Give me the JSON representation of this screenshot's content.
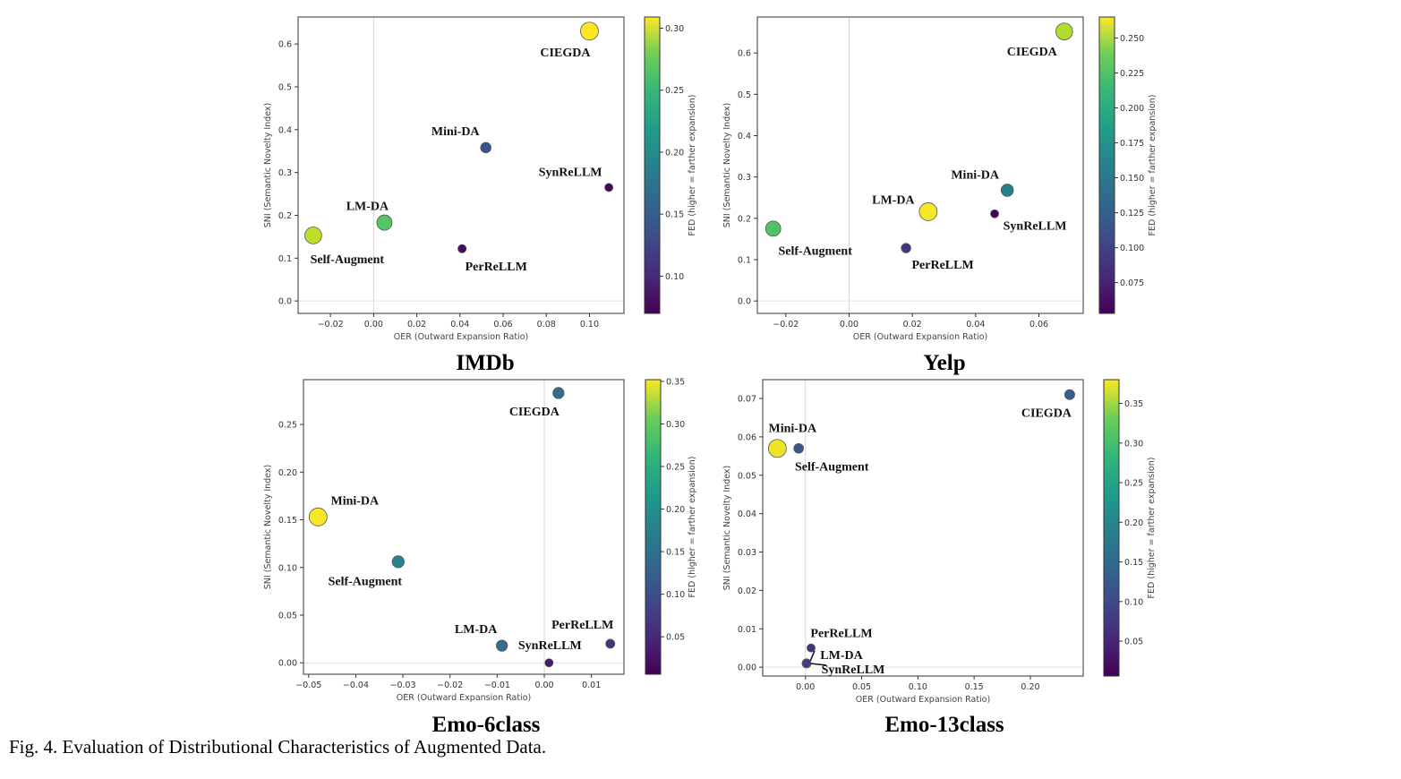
{
  "caption": "Fig. 4.  Evaluation of Distributional Characteristics of Augmented Data.",
  "chart_data": [
    {
      "type": "scatter",
      "title": "IMDb",
      "xlabel": "OER (Outward Expansion Ratio)",
      "ylabel": "SNI (Semantic Novelty Index)",
      "colorbar_label": "FED (higher = farther expansion)",
      "colormap": "viridis",
      "xlim": [
        -0.035,
        0.116
      ],
      "ylim": [
        -0.029,
        0.663
      ],
      "clim": [
        0.07,
        0.309
      ],
      "xticks": [
        "−0.02",
        "0.00",
        "0.02",
        "0.04",
        "0.06",
        "0.08",
        "0.10"
      ],
      "xtick_values": [
        -0.02,
        0,
        0.02,
        0.04,
        0.06,
        0.08,
        0.1
      ],
      "yticks": [
        "0.0",
        "0.1",
        "0.2",
        "0.3",
        "0.4",
        "0.5",
        "0.6"
      ],
      "ytick_values": [
        0,
        0.1,
        0.2,
        0.3,
        0.4,
        0.5,
        0.6
      ],
      "cticks": [
        "0.10",
        "0.15",
        "0.20",
        "0.25",
        "0.30"
      ],
      "ctick_values": [
        0.1,
        0.15,
        0.2,
        0.25,
        0.3
      ],
      "reference_lines": {
        "x": 0,
        "y": 0
      },
      "points": [
        {
          "name": "CIEGDA",
          "x": 0.1,
          "y": 0.63,
          "fed": 0.309
        },
        {
          "name": "Mini-DA",
          "x": 0.052,
          "y": 0.358,
          "fed": 0.13
        },
        {
          "name": "SynReLLM",
          "x": 0.109,
          "y": 0.265,
          "fed": 0.072
        },
        {
          "name": "LM-DA",
          "x": 0.005,
          "y": 0.183,
          "fed": 0.245
        },
        {
          "name": "Self-Augment",
          "x": -0.028,
          "y": 0.153,
          "fed": 0.285
        },
        {
          "name": "PerReLLM",
          "x": 0.041,
          "y": 0.122,
          "fed": 0.078
        }
      ]
    },
    {
      "type": "scatter",
      "title": "Yelp",
      "xlabel": "OER (Outward Expansion Ratio)",
      "ylabel": "SNI (Semantic Novelty Index)",
      "colorbar_label": "FED (higher = farther expansion)",
      "colormap": "viridis",
      "xlim": [
        -0.029,
        0.074
      ],
      "ylim": [
        -0.03,
        0.687
      ],
      "clim": [
        0.053,
        0.265
      ],
      "xticks": [
        "−0.02",
        "0.00",
        "0.02",
        "0.04",
        "0.06"
      ],
      "xtick_values": [
        -0.02,
        0,
        0.02,
        0.04,
        0.06
      ],
      "yticks": [
        "0.0",
        "0.1",
        "0.2",
        "0.3",
        "0.4",
        "0.5",
        "0.6"
      ],
      "ytick_values": [
        0,
        0.1,
        0.2,
        0.3,
        0.4,
        0.5,
        0.6
      ],
      "cticks": [
        "0.075",
        "0.100",
        "0.125",
        "0.150",
        "0.175",
        "0.200",
        "0.225",
        "0.250"
      ],
      "ctick_values": [
        0.075,
        0.1,
        0.125,
        0.15,
        0.175,
        0.2,
        0.225,
        0.25
      ],
      "reference_lines": {
        "x": 0,
        "y": 0
      },
      "points": [
        {
          "name": "CIEGDA",
          "x": 0.068,
          "y": 0.652,
          "fed": 0.24
        },
        {
          "name": "Mini-DA",
          "x": 0.05,
          "y": 0.268,
          "fed": 0.145
        },
        {
          "name": "LM-DA",
          "x": 0.025,
          "y": 0.216,
          "fed": 0.263
        },
        {
          "name": "SynReLLM",
          "x": 0.046,
          "y": 0.211,
          "fed": 0.055
        },
        {
          "name": "Self-Augment",
          "x": -0.024,
          "y": 0.175,
          "fed": 0.205
        },
        {
          "name": "PerReLLM",
          "x": 0.018,
          "y": 0.128,
          "fed": 0.085
        }
      ]
    },
    {
      "type": "scatter",
      "title": "Emo-6class",
      "xlabel": "OER (Outward Expansion Ratio)",
      "ylabel": "SNI (Semantic Novelty Index)",
      "colorbar_label": "FED (higher = farther expansion)",
      "colormap": "viridis",
      "xlim": [
        -0.0511,
        0.0169
      ],
      "ylim": [
        -0.012,
        0.297
      ],
      "clim": [
        0.006,
        0.352
      ],
      "xticks": [
        "−0.05",
        "−0.04",
        "−0.03",
        "−0.02",
        "−0.01",
        "0.00",
        "0.01"
      ],
      "xtick_values": [
        -0.05,
        -0.04,
        -0.03,
        -0.02,
        -0.01,
        0,
        0.01
      ],
      "yticks": [
        "0.00",
        "0.05",
        "0.10",
        "0.15",
        "0.20",
        "0.25"
      ],
      "ytick_values": [
        0,
        0.05,
        0.1,
        0.15,
        0.2,
        0.25
      ],
      "cticks": [
        "0.05",
        "0.10",
        "0.15",
        "0.20",
        "0.25",
        "0.30",
        "0.35"
      ],
      "ctick_values": [
        0.05,
        0.1,
        0.15,
        0.2,
        0.25,
        0.3,
        0.35
      ],
      "reference_lines": {
        "x": 0,
        "y": 0
      },
      "points": [
        {
          "name": "CIEGDA",
          "x": 0.003,
          "y": 0.283,
          "fed": 0.13
        },
        {
          "name": "Mini-DA",
          "x": -0.048,
          "y": 0.153,
          "fed": 0.35
        },
        {
          "name": "Self-Augment",
          "x": -0.031,
          "y": 0.106,
          "fed": 0.16
        },
        {
          "name": "LM-DA",
          "x": -0.009,
          "y": 0.018,
          "fed": 0.13
        },
        {
          "name": "SynReLLM",
          "x": 0.001,
          "y": 0.0,
          "fed": 0.03
        },
        {
          "name": "PerReLLM",
          "x": 0.014,
          "y": 0.02,
          "fed": 0.06
        }
      ]
    },
    {
      "type": "scatter",
      "title": "Emo-13class",
      "xlabel": "OER (Outward Expansion Ratio)",
      "ylabel": "SNI (Semantic Novelty Index)",
      "colorbar_label": "FED (higher = farther expansion)",
      "colormap": "viridis",
      "xlim": [
        -0.038,
        0.247
      ],
      "ylim": [
        -0.0023,
        0.0749
      ],
      "clim": [
        0.006,
        0.38
      ],
      "xticks": [
        "0.00",
        "0.05",
        "0.10",
        "0.15",
        "0.20"
      ],
      "xtick_values": [
        0,
        0.05,
        0.1,
        0.15,
        0.2
      ],
      "yticks": [
        "0.00",
        "0.01",
        "0.02",
        "0.03",
        "0.04",
        "0.05",
        "0.06",
        "0.07"
      ],
      "ytick_values": [
        0,
        0.01,
        0.02,
        0.03,
        0.04,
        0.05,
        0.06,
        0.07
      ],
      "cticks": [
        "0.05",
        "0.10",
        "0.15",
        "0.20",
        "0.25",
        "0.30",
        "0.35"
      ],
      "ctick_values": [
        0.05,
        0.1,
        0.15,
        0.2,
        0.25,
        0.3,
        0.35
      ],
      "reference_lines": {
        "x": 0,
        "y": 0
      },
      "points": [
        {
          "name": "CIEGDA",
          "x": 0.235,
          "y": 0.071,
          "fed": 0.12
        },
        {
          "name": "Mini-DA",
          "x": -0.025,
          "y": 0.057,
          "fed": 0.37
        },
        {
          "name": "Self-Augment",
          "x": -0.006,
          "y": 0.057,
          "fed": 0.11
        },
        {
          "name": "PerReLLM",
          "x": 0.005,
          "y": 0.005,
          "fed": 0.06
        },
        {
          "name": "LM-DA",
          "x": 0.001,
          "y": 0.001,
          "fed": 0.09
        },
        {
          "name": "SynReLLM",
          "x": 0.001,
          "y": 0.001,
          "fed": 0.07
        }
      ]
    }
  ]
}
